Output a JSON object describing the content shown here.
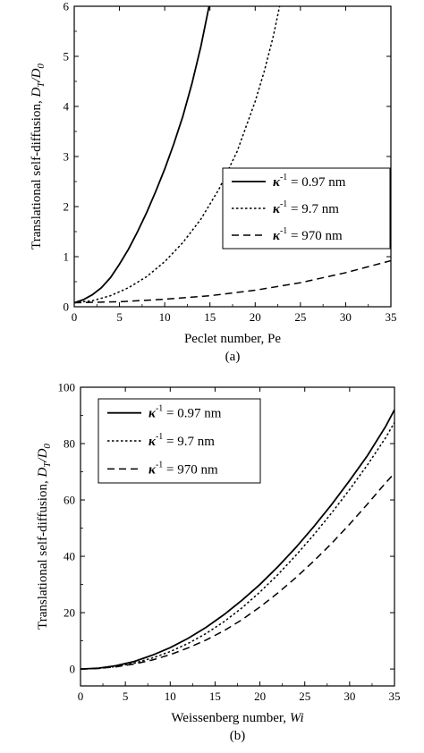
{
  "chart_data": [
    {
      "type": "line",
      "panel_label": "(a)",
      "xlabel": "Peclet number, Pe",
      "ylabel_main": "Translational self-diffusion, ",
      "ylabel_math": "D",
      "ylabel_sub": "T",
      "ylabel_tail": "/D",
      "ylabel_sub2": "0",
      "xlim": [
        0,
        35
      ],
      "ylim": [
        0,
        6
      ],
      "xticks": [
        0,
        5,
        10,
        15,
        20,
        25,
        30,
        35
      ],
      "yticks": [
        0,
        1,
        2,
        3,
        4,
        5,
        6
      ],
      "grid": false,
      "legend_position": "center-right",
      "series": [
        {
          "name": "κ⁻¹ = 0.97 nm",
          "legend_symbol": "κ",
          "legend_sup": "-1",
          "legend_text": " = 0.97 nm",
          "style": "solid",
          "x": [
            0,
            1,
            2,
            3,
            4,
            5,
            6,
            7,
            8,
            9,
            10,
            11,
            12,
            13,
            14,
            14.9
          ],
          "y": [
            0.08,
            0.14,
            0.24,
            0.38,
            0.58,
            0.85,
            1.15,
            1.5,
            1.88,
            2.3,
            2.75,
            3.25,
            3.8,
            4.45,
            5.2,
            6.0
          ]
        },
        {
          "name": "κ⁻¹ = 9.7 nm",
          "legend_symbol": "κ",
          "legend_sup": "-1",
          "legend_text": " = 9.7 nm",
          "style": "dotted",
          "x": [
            0,
            2,
            4,
            6,
            8,
            10,
            12,
            14,
            16,
            18,
            20,
            21,
            22,
            22.7
          ],
          "y": [
            0.08,
            0.12,
            0.22,
            0.38,
            0.6,
            0.9,
            1.28,
            1.75,
            2.35,
            3.1,
            4.1,
            4.7,
            5.4,
            6.0
          ]
        },
        {
          "name": "κ⁻¹ = 970 nm",
          "legend_symbol": "κ",
          "legend_sup": "-1",
          "legend_text": " = 970 nm",
          "style": "dashed",
          "x": [
            0,
            5,
            10,
            15,
            20,
            25,
            30,
            35
          ],
          "y": [
            0.08,
            0.1,
            0.15,
            0.22,
            0.33,
            0.48,
            0.68,
            0.92
          ]
        }
      ]
    },
    {
      "type": "line",
      "panel_label": "(b)",
      "xlabel_main": "Weissenberg number, ",
      "xlabel_math": "Wi",
      "ylabel_main": "Translational self-diffusion, ",
      "ylabel_math": "D",
      "ylabel_sub": "T",
      "ylabel_tail": "/D",
      "ylabel_sub2": "0",
      "xlim": [
        0,
        35
      ],
      "ylim": [
        -6,
        100
      ],
      "xticks": [
        0,
        5,
        10,
        15,
        20,
        25,
        30,
        35
      ],
      "yticks": [
        0,
        20,
        40,
        60,
        80,
        100
      ],
      "grid": false,
      "legend_position": "top-left",
      "series": [
        {
          "name": "κ⁻¹ = 0.97 nm",
          "legend_symbol": "κ",
          "legend_sup": "-1",
          "legend_text": " = 0.97 nm",
          "style": "solid",
          "x": [
            0,
            2,
            4,
            6,
            8,
            10,
            12,
            14,
            16,
            18,
            20,
            22,
            24,
            26,
            28,
            30,
            32,
            34,
            35
          ],
          "y": [
            0,
            0.3,
            1.2,
            2.7,
            4.9,
            7.6,
            10.9,
            14.8,
            19.3,
            24.4,
            30.0,
            36.3,
            43.1,
            50.5,
            58.4,
            66.9,
            75.8,
            86.0,
            92.0
          ]
        },
        {
          "name": "κ⁻¹ = 9.7 nm",
          "legend_symbol": "κ",
          "legend_sup": "-1",
          "legend_text": " = 9.7 nm",
          "style": "dotted",
          "x": [
            0,
            2,
            4,
            6,
            8,
            10,
            12,
            14,
            16,
            18,
            20,
            22,
            24,
            26,
            28,
            30,
            32,
            34,
            35
          ],
          "y": [
            0,
            0.2,
            0.9,
            2.1,
            3.9,
            6.2,
            9.1,
            12.6,
            16.8,
            21.7,
            27.3,
            33.5,
            40.3,
            47.6,
            55.4,
            63.7,
            72.5,
            82.0,
            87.5
          ]
        },
        {
          "name": "κ⁻¹ = 970 nm",
          "legend_symbol": "κ",
          "legend_sup": "-1",
          "legend_text": " = 970 nm",
          "style": "dashed",
          "x": [
            0,
            2,
            4,
            6,
            8,
            10,
            12,
            14,
            16,
            18,
            20,
            22,
            24,
            26,
            28,
            30,
            32,
            34,
            35
          ],
          "y": [
            0,
            0.2,
            0.8,
            1.8,
            3.2,
            5.1,
            7.5,
            10.3,
            13.6,
            17.5,
            22.0,
            27.0,
            32.4,
            38.3,
            44.6,
            51.4,
            58.6,
            66.0,
            69.5
          ]
        }
      ]
    }
  ]
}
